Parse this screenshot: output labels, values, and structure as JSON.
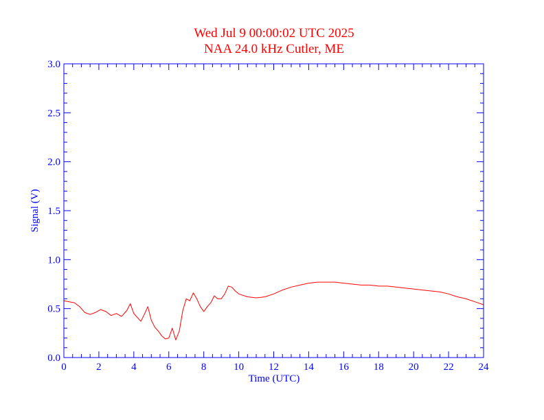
{
  "colors": {
    "title": "#ff0000",
    "axis": "#0000ff",
    "series": "#ff0000",
    "background": "#ffffff"
  },
  "chart_data": {
    "type": "line",
    "title": "Wed Jul 9 00:00:02 UTC 2025",
    "subtitle": "NAA 24.0 kHz Cutler, ME",
    "xlabel": "Time (UTC)",
    "ylabel": "Signal (V)",
    "xlim": [
      0,
      24
    ],
    "ylim": [
      0,
      3.0
    ],
    "x_ticks": [
      0,
      2,
      4,
      6,
      8,
      10,
      12,
      14,
      16,
      18,
      20,
      22,
      24
    ],
    "x_tick_labels": [
      "0",
      "2",
      "4",
      "6",
      "8",
      "10",
      "12",
      "14",
      "16",
      "18",
      "20",
      "22",
      "24"
    ],
    "y_ticks": [
      0,
      0.5,
      1.0,
      1.5,
      2.0,
      2.5,
      3.0
    ],
    "y_tick_labels": [
      "0.0",
      "0.5",
      "1.0",
      "1.5",
      "2.0",
      "2.5",
      "3.0"
    ],
    "grid": false,
    "legend": "none",
    "series": [
      {
        "x": [
          0,
          0.3,
          0.6,
          0.9,
          1.2,
          1.5,
          1.8,
          2.1,
          2.4,
          2.7,
          3.0,
          3.3,
          3.6,
          3.8,
          4.0,
          4.2,
          4.4,
          4.6,
          4.8,
          5.0,
          5.2,
          5.4,
          5.6,
          5.8,
          6.0,
          6.2,
          6.4,
          6.6,
          6.8,
          7.0,
          7.2,
          7.4,
          7.6,
          7.8,
          8.0,
          8.2,
          8.4,
          8.6,
          8.8,
          9.0,
          9.2,
          9.4,
          9.6,
          9.8,
          10.0,
          10.5,
          11.0,
          11.5,
          12.0,
          12.5,
          13.0,
          13.5,
          14.0,
          14.5,
          15.0,
          15.5,
          16.0,
          16.5,
          17.0,
          17.5,
          18.0,
          18.5,
          19.0,
          19.5,
          20.0,
          20.5,
          21.0,
          21.5,
          22.0,
          22.5,
          23.0,
          23.5,
          24.0
        ],
        "values": [
          0.58,
          0.57,
          0.56,
          0.52,
          0.46,
          0.44,
          0.46,
          0.49,
          0.47,
          0.43,
          0.45,
          0.42,
          0.48,
          0.55,
          0.45,
          0.41,
          0.37,
          0.44,
          0.52,
          0.38,
          0.31,
          0.27,
          0.22,
          0.19,
          0.2,
          0.3,
          0.18,
          0.27,
          0.48,
          0.6,
          0.58,
          0.66,
          0.6,
          0.52,
          0.47,
          0.52,
          0.56,
          0.63,
          0.6,
          0.6,
          0.65,
          0.73,
          0.72,
          0.68,
          0.65,
          0.62,
          0.61,
          0.62,
          0.65,
          0.69,
          0.72,
          0.74,
          0.76,
          0.77,
          0.77,
          0.77,
          0.76,
          0.75,
          0.74,
          0.74,
          0.73,
          0.73,
          0.72,
          0.71,
          0.7,
          0.69,
          0.68,
          0.67,
          0.65,
          0.62,
          0.6,
          0.57,
          0.54
        ]
      }
    ]
  }
}
